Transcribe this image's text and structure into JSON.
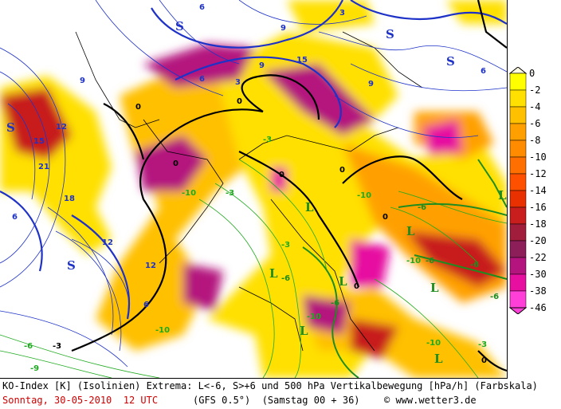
{
  "caption": {
    "line1": "KO-Index [K] (Isolinien) Extrema: L<-6, S>+6 und 500 hPa Vertikalbewegung [hPa/h] (Farbskala)",
    "date": "Sonntag, 30-05-2010  12 UTC",
    "model": "(GFS 0.5°)  (Samstag 00 + 36)",
    "credit": "© www.wetter3.de"
  },
  "colorbar": {
    "labels": [
      "0",
      "-2",
      "-4",
      "-6",
      "-8",
      "-10",
      "-12",
      "-14",
      "-16",
      "-18",
      "-20",
      "-22",
      "-30",
      "-38",
      "-46"
    ],
    "colors": [
      "#fffbe0",
      "#ffff00",
      "#ffe000",
      "#ffc000",
      "#ffa000",
      "#ff8c00",
      "#ff7000",
      "#ff5000",
      "#e83000",
      "#c81e1e",
      "#a01e3c",
      "#8c1e5a",
      "#b4147e",
      "#e60fa0",
      "#ff40d8"
    ]
  },
  "map_labels": {
    "blue_numbers": [
      "6",
      "6",
      "9",
      "9",
      "12",
      "12",
      "15",
      "18",
      "21",
      "3",
      "3",
      "6",
      "12",
      "15",
      "9",
      "6",
      "6",
      "9"
    ],
    "black_numbers": [
      "0",
      "0",
      "0",
      "0",
      "0",
      "0",
      "0",
      "0",
      "-3"
    ],
    "green_numbers": [
      "-3",
      "-3",
      "-6",
      "-6",
      "-6",
      "-6",
      "-6",
      "-6",
      "-10",
      "-10",
      "-10",
      "-10",
      "-10",
      "-10",
      "-6",
      "-3",
      "-3",
      "-9"
    ],
    "highs": [
      "S",
      "S",
      "S",
      "S",
      "S"
    ],
    "lows": [
      "L",
      "L",
      "L",
      "L",
      "L",
      "L",
      "L",
      "L"
    ]
  }
}
